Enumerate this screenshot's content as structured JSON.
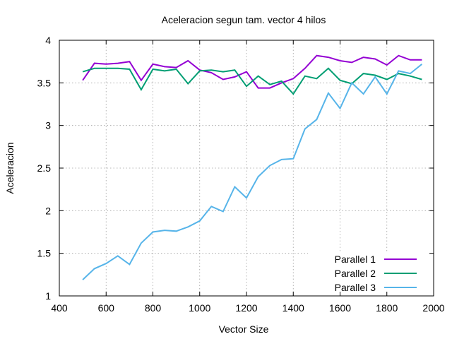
{
  "chart_data": {
    "type": "line",
    "title": "Aceleracion segun tam. vector 4 hilos",
    "xlabel": "Vector Size",
    "ylabel": "Aceleracion",
    "xlim": [
      400,
      2000
    ],
    "ylim": [
      1,
      4
    ],
    "xticks": [
      400,
      600,
      800,
      1000,
      1200,
      1400,
      1600,
      1800,
      2000
    ],
    "yticks": [
      1,
      1.5,
      2,
      2.5,
      3,
      3.5,
      4
    ],
    "ytick_labels": [
      "1",
      "1.5",
      "2",
      "2.5",
      "3",
      "3.5",
      "4"
    ],
    "grid": true,
    "legend_position": "bottom-right",
    "x": [
      500,
      550,
      600,
      650,
      700,
      750,
      800,
      850,
      900,
      950,
      1000,
      1050,
      1100,
      1150,
      1200,
      1250,
      1300,
      1350,
      1400,
      1450,
      1500,
      1550,
      1600,
      1650,
      1700,
      1750,
      1800,
      1850,
      1900,
      1950
    ],
    "series": [
      {
        "name": "Parallel 1",
        "color": "#9400d3",
        "values": [
          3.53,
          3.73,
          3.72,
          3.73,
          3.75,
          3.53,
          3.72,
          3.69,
          3.68,
          3.76,
          3.65,
          3.62,
          3.54,
          3.57,
          3.63,
          3.44,
          3.44,
          3.5,
          3.55,
          3.67,
          3.82,
          3.8,
          3.76,
          3.74,
          3.8,
          3.78,
          3.71,
          3.82,
          3.77,
          3.77
        ]
      },
      {
        "name": "Parallel 2",
        "color": "#009e73",
        "values": [
          3.63,
          3.67,
          3.67,
          3.67,
          3.66,
          3.42,
          3.66,
          3.64,
          3.66,
          3.49,
          3.64,
          3.65,
          3.63,
          3.65,
          3.46,
          3.58,
          3.48,
          3.52,
          3.37,
          3.58,
          3.55,
          3.67,
          3.53,
          3.49,
          3.61,
          3.59,
          3.54,
          3.61,
          3.58,
          3.54
        ]
      },
      {
        "name": "Parallel 3",
        "color": "#56b4e9",
        "values": [
          1.19,
          1.32,
          1.38,
          1.47,
          1.37,
          1.62,
          1.75,
          1.77,
          1.76,
          1.81,
          1.88,
          2.05,
          1.99,
          2.28,
          2.15,
          2.4,
          2.53,
          2.6,
          2.61,
          2.96,
          3.07,
          3.38,
          3.2,
          3.5,
          3.37,
          3.57,
          3.37,
          3.64,
          3.61,
          3.72
        ]
      }
    ]
  }
}
